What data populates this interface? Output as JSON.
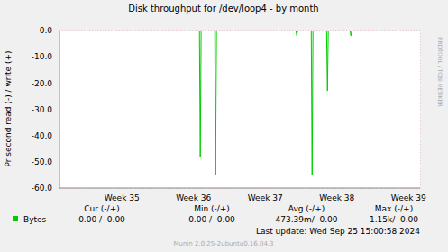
{
  "chart_data": {
    "type": "line",
    "title": "Disk throughput for /dev/loop4 - by month",
    "y_label": "Pr second read (-) / write (+)",
    "x": [
      34.13,
      36.082,
      36.094,
      36.106,
      36.296,
      36.308,
      36.32,
      37.428,
      37.44,
      37.452,
      37.642,
      37.654,
      37.666,
      37.856,
      37.868,
      37.88,
      38.183,
      38.195,
      38.207,
      39.16
    ],
    "series": [
      {
        "name": "Bytes",
        "color": "#00cc00",
        "values": [
          0,
          0,
          -48,
          0,
          0,
          -55,
          0,
          0,
          -2,
          0,
          0,
          -55,
          0,
          0,
          -23,
          0,
          0,
          -2,
          0,
          0
        ]
      }
    ],
    "xlim": [
      34.13,
      39.16
    ],
    "xticks": [
      {
        "value": 35,
        "label": "Week 35"
      },
      {
        "value": 36,
        "label": "Week 36"
      },
      {
        "value": 37,
        "label": "Week 37"
      },
      {
        "value": 38,
        "label": "Week 38"
      },
      {
        "value": 39,
        "label": "Week 39"
      }
    ],
    "ylim": [
      -60,
      0
    ],
    "yticks": [
      {
        "value": -60,
        "label": "-60.0"
      },
      {
        "value": -50,
        "label": "-50.0"
      },
      {
        "value": -40,
        "label": "-40.0"
      },
      {
        "value": -30,
        "label": "-30.0"
      },
      {
        "value": -20,
        "label": "-20.0"
      },
      {
        "value": -10,
        "label": "-10.0"
      },
      {
        "value": 0,
        "label": "0.0"
      }
    ],
    "grid": true,
    "table": {
      "columns": [
        "Cur (-/+)",
        "Min (-/+)",
        "Avg (-/+)",
        "Max (-/+)"
      ],
      "rows": [
        {
          "name": "Bytes",
          "cells": [
            "0.00 /  0.00",
            "0.00 /  0.00",
            "473.39m/  0.00",
            "1.15k/  0.00"
          ]
        }
      ]
    },
    "footer": "Last update: Wed Sep 25 15:00:58 2024",
    "credit": "Munin 2.0.25-2ubuntu0.16.04.3",
    "side_text": "RRDTOOL / TOBI OETIKER"
  }
}
